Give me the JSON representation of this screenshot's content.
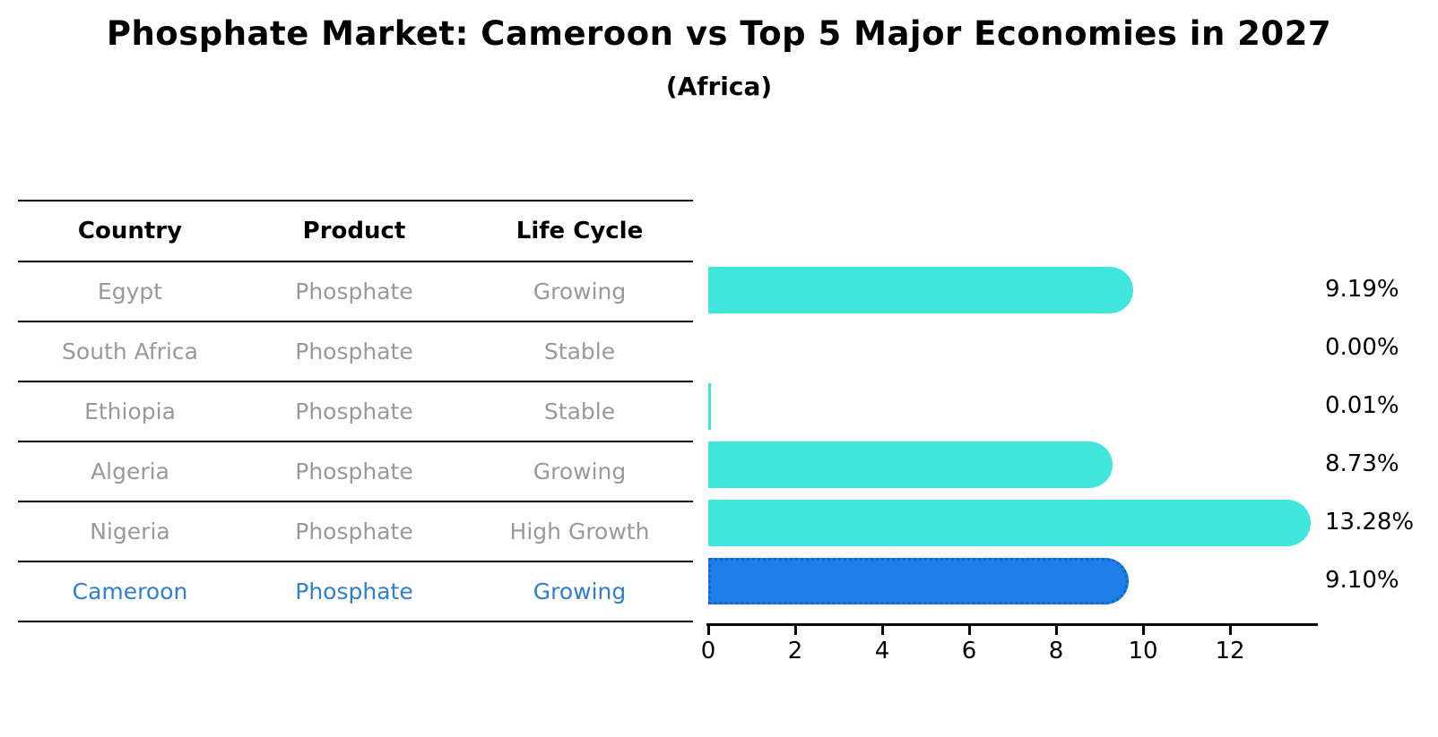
{
  "title": "Phosphate Market: Cameroon vs Top 5 Major Economies in 2027",
  "subtitle": "(Africa)",
  "table": {
    "headers": [
      "Country",
      "Product",
      "Life Cycle"
    ],
    "rows": [
      {
        "country": "Egypt",
        "product": "Phosphate",
        "life_cycle": "Growing",
        "highlight": false
      },
      {
        "country": "South Africa",
        "product": "Phosphate",
        "life_cycle": "Stable",
        "highlight": false
      },
      {
        "country": "Ethiopia",
        "product": "Phosphate",
        "life_cycle": "Stable",
        "highlight": false
      },
      {
        "country": "Algeria",
        "product": "Phosphate",
        "life_cycle": "Growing",
        "highlight": false
      },
      {
        "country": "Nigeria",
        "product": "Phosphate",
        "life_cycle": "High Growth",
        "highlight": false
      },
      {
        "country": "Cameroon",
        "product": "Phosphate",
        "life_cycle": "Growing",
        "highlight": true
      }
    ]
  },
  "chart_data": {
    "type": "bar",
    "orientation": "horizontal",
    "title": "Phosphate Market: Cameroon vs Top 5 Major Economies in 2027",
    "subtitle": "(Africa)",
    "categories": [
      "Egypt",
      "South Africa",
      "Ethiopia",
      "Algeria",
      "Nigeria",
      "Cameroon"
    ],
    "values": [
      9.19,
      0.0,
      0.01,
      8.73,
      13.28,
      9.1
    ],
    "value_labels": [
      "9.19%",
      "0.00%",
      "0.01%",
      "8.73%",
      "13.28%",
      "9.10%"
    ],
    "unit": "%",
    "x_ticks": [
      "0",
      "2",
      "4",
      "6",
      "8",
      "10",
      "12"
    ],
    "x_tick_values": [
      0,
      2,
      4,
      6,
      8,
      10,
      12
    ],
    "xlim": [
      0,
      14
    ],
    "grid": false,
    "legend": null,
    "highlight_category": "Cameroon",
    "colors": {
      "default_bar": "#40E5DC",
      "highlight_bar": "#1E7FE8",
      "highlight_edge": "#1563C8",
      "muted_text": "#999999",
      "highlight_text": "#2E7FD0",
      "axis": "#000000"
    }
  }
}
